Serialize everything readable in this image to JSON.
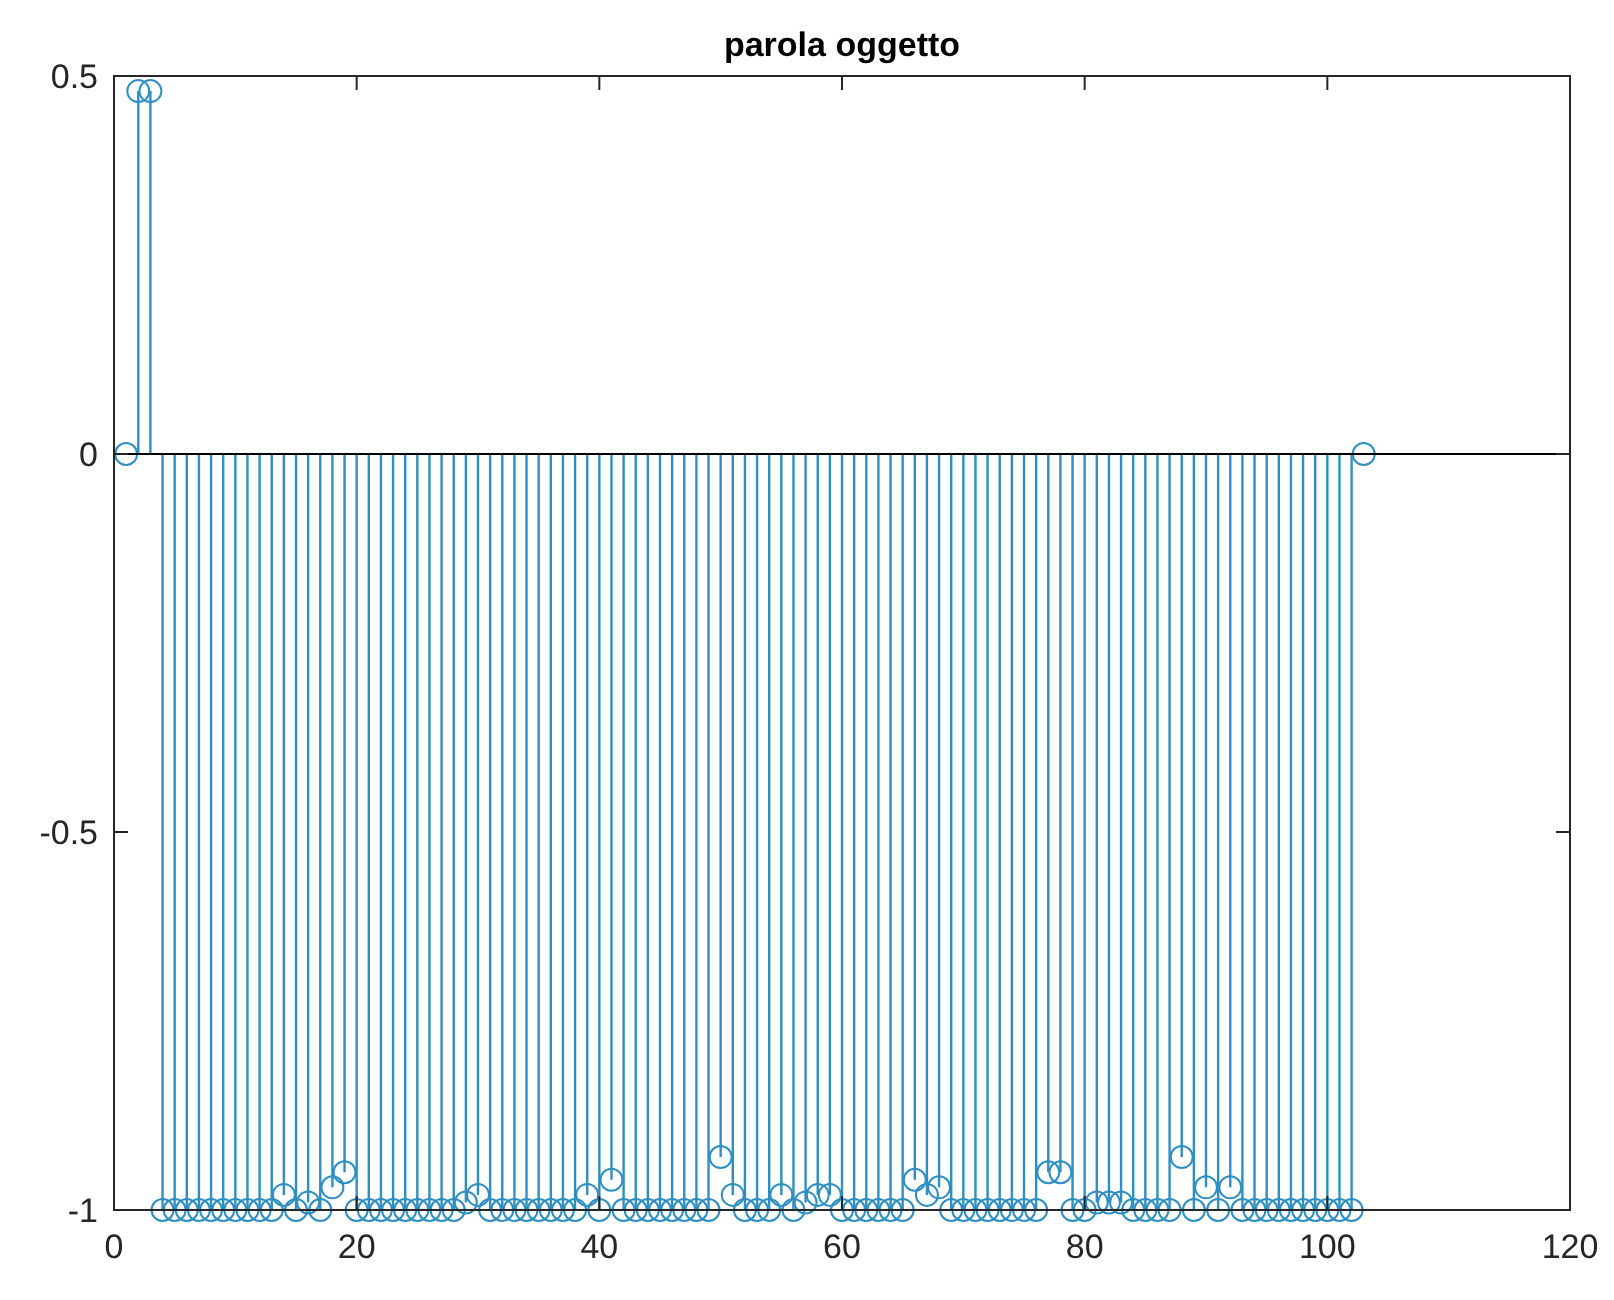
{
  "chart_data": {
    "type": "lollipop",
    "title": "parola oggetto",
    "x": [
      1,
      2,
      3,
      4,
      5,
      6,
      7,
      8,
      9,
      10,
      11,
      12,
      13,
      14,
      15,
      16,
      17,
      18,
      19,
      20,
      21,
      22,
      23,
      24,
      25,
      26,
      27,
      28,
      29,
      30,
      31,
      32,
      33,
      34,
      35,
      36,
      37,
      38,
      39,
      40,
      41,
      42,
      43,
      44,
      45,
      46,
      47,
      48,
      49,
      50,
      51,
      52,
      53,
      54,
      55,
      56,
      57,
      58,
      59,
      60,
      61,
      62,
      63,
      64,
      65,
      66,
      67,
      68,
      69,
      70,
      71,
      72,
      73,
      74,
      75,
      76,
      77,
      78,
      79,
      80,
      81,
      82,
      83,
      84,
      85,
      86,
      87,
      88,
      89,
      90,
      91,
      92,
      93,
      94,
      95,
      96,
      97,
      98,
      99,
      100,
      101,
      102,
      103
    ],
    "series": [
      {
        "color": "#2e8fc0",
        "values": [
          0,
          0.48,
          0.48,
          -1,
          -1,
          -1,
          -1,
          -1,
          -1,
          -1,
          -1,
          -1,
          -1,
          -0.98,
          -1,
          -0.99,
          -1,
          -0.97,
          -0.95,
          -1,
          -1,
          -1,
          -1,
          -1,
          -1,
          -1,
          -1,
          -1,
          -0.99,
          -0.98,
          -1,
          -1,
          -1,
          -1,
          -1,
          -1,
          -1,
          -1,
          -0.98,
          -1,
          -0.96,
          -1,
          -1,
          -1,
          -1,
          -1,
          -1,
          -1,
          -1,
          -0.93,
          -0.98,
          -1,
          -1,
          -1,
          -0.98,
          -1,
          -0.99,
          -0.98,
          -0.98,
          -1,
          -1,
          -1,
          -1,
          -1,
          -1,
          -0.96,
          -0.98,
          -0.97,
          -1,
          -1,
          -1,
          -1,
          -1,
          -1,
          -1,
          -1,
          -0.95,
          -0.95,
          -1,
          -1,
          -0.99,
          -0.99,
          -0.99,
          -1,
          -1,
          -1,
          -1,
          -0.93,
          -1,
          -0.97,
          -1,
          -0.97,
          -1,
          -1,
          -1,
          -1,
          -1,
          -1,
          -1,
          -1,
          -1,
          -1,
          0
        ]
      }
    ],
    "xlim": [
      0,
      120
    ],
    "xticks": [
      0,
      20,
      40,
      60,
      80,
      100,
      120
    ],
    "ylim": [
      -1,
      0.5
    ],
    "yticks": [
      -1,
      {
        "value": -0.5,
        "label": "-0.5"
      },
      0,
      {
        "value": 0.5,
        "label": "0.5"
      }
    ],
    "ref_lines": [
      {
        "axis": "y",
        "value": 0,
        "color": "#000000"
      }
    ],
    "marker": "circle"
  }
}
